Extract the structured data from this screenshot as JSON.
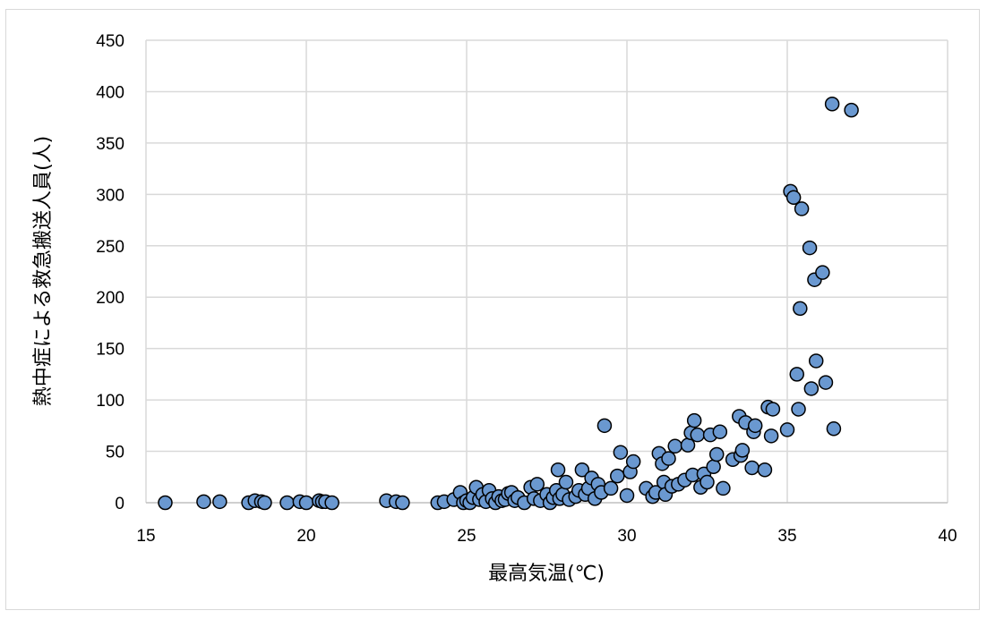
{
  "chart_data": {
    "type": "scatter",
    "title": "",
    "xlabel": "最高気温(℃)",
    "ylabel": "熱中症による救急搬送人員(人)",
    "xlim": [
      15,
      40
    ],
    "ylim": [
      0,
      450
    ],
    "x_ticks": [
      15,
      20,
      25,
      30,
      35,
      40
    ],
    "y_ticks": [
      0,
      50,
      100,
      150,
      200,
      250,
      300,
      350,
      400,
      450
    ],
    "grid": true,
    "legend": "none",
    "marker_color": "#6a98d0",
    "marker_edge_color": "#000000",
    "grid_color": "#d9d9d9",
    "points": [
      [
        15.6,
        0
      ],
      [
        16.8,
        1
      ],
      [
        17.3,
        1
      ],
      [
        18.2,
        0
      ],
      [
        18.4,
        2
      ],
      [
        18.6,
        1
      ],
      [
        18.7,
        0
      ],
      [
        19.4,
        0
      ],
      [
        19.8,
        1
      ],
      [
        20.0,
        0
      ],
      [
        20.4,
        2
      ],
      [
        20.5,
        1
      ],
      [
        20.6,
        1
      ],
      [
        20.8,
        0
      ],
      [
        22.5,
        2
      ],
      [
        22.8,
        1
      ],
      [
        23.0,
        0
      ],
      [
        24.1,
        0
      ],
      [
        24.3,
        1
      ],
      [
        24.6,
        3
      ],
      [
        24.8,
        10
      ],
      [
        24.9,
        0
      ],
      [
        25.0,
        2
      ],
      [
        25.1,
        0
      ],
      [
        25.2,
        5
      ],
      [
        25.3,
        15
      ],
      [
        25.4,
        3
      ],
      [
        25.5,
        8
      ],
      [
        25.6,
        1
      ],
      [
        25.7,
        12
      ],
      [
        25.8,
        4
      ],
      [
        25.9,
        0
      ],
      [
        26.0,
        6
      ],
      [
        26.1,
        2
      ],
      [
        26.2,
        3
      ],
      [
        26.3,
        9
      ],
      [
        26.4,
        10
      ],
      [
        26.5,
        2
      ],
      [
        26.6,
        5
      ],
      [
        26.8,
        0
      ],
      [
        27.0,
        15
      ],
      [
        27.1,
        4
      ],
      [
        27.2,
        18
      ],
      [
        27.3,
        2
      ],
      [
        27.5,
        8
      ],
      [
        27.6,
        0
      ],
      [
        27.7,
        5
      ],
      [
        27.8,
        12
      ],
      [
        27.85,
        32
      ],
      [
        27.9,
        4
      ],
      [
        28.0,
        8
      ],
      [
        28.1,
        20
      ],
      [
        28.2,
        3
      ],
      [
        28.4,
        6
      ],
      [
        28.5,
        12
      ],
      [
        28.6,
        32
      ],
      [
        28.7,
        8
      ],
      [
        28.8,
        14
      ],
      [
        28.9,
        24
      ],
      [
        29.0,
        4
      ],
      [
        29.1,
        18
      ],
      [
        29.2,
        10
      ],
      [
        29.3,
        75
      ],
      [
        29.5,
        14
      ],
      [
        29.7,
        26
      ],
      [
        29.8,
        49
      ],
      [
        30.0,
        7
      ],
      [
        30.1,
        30
      ],
      [
        30.2,
        40
      ],
      [
        30.6,
        14
      ],
      [
        30.8,
        6
      ],
      [
        30.9,
        10
      ],
      [
        31.0,
        48
      ],
      [
        31.1,
        38
      ],
      [
        31.15,
        20
      ],
      [
        31.2,
        8
      ],
      [
        31.3,
        43
      ],
      [
        31.4,
        16
      ],
      [
        31.5,
        55
      ],
      [
        31.6,
        18
      ],
      [
        31.8,
        22
      ],
      [
        31.9,
        56
      ],
      [
        32.0,
        68
      ],
      [
        32.05,
        27
      ],
      [
        32.1,
        80
      ],
      [
        32.2,
        66
      ],
      [
        32.3,
        15
      ],
      [
        32.4,
        28
      ],
      [
        32.5,
        20
      ],
      [
        32.6,
        66
      ],
      [
        32.7,
        35
      ],
      [
        32.8,
        47
      ],
      [
        32.9,
        69
      ],
      [
        33.0,
        14
      ],
      [
        33.3,
        42
      ],
      [
        33.5,
        84
      ],
      [
        33.55,
        46
      ],
      [
        33.6,
        51
      ],
      [
        33.7,
        78
      ],
      [
        33.9,
        34
      ],
      [
        33.95,
        69
      ],
      [
        34.0,
        75
      ],
      [
        34.3,
        32
      ],
      [
        34.4,
        93
      ],
      [
        34.5,
        65
      ],
      [
        34.55,
        91
      ],
      [
        35.0,
        71
      ],
      [
        35.1,
        303
      ],
      [
        35.2,
        297
      ],
      [
        35.3,
        125
      ],
      [
        35.35,
        91
      ],
      [
        35.4,
        189
      ],
      [
        35.45,
        286
      ],
      [
        35.7,
        248
      ],
      [
        35.75,
        111
      ],
      [
        35.85,
        217
      ],
      [
        35.9,
        138
      ],
      [
        36.1,
        224
      ],
      [
        36.2,
        117
      ],
      [
        36.4,
        388
      ],
      [
        36.45,
        72
      ],
      [
        37.0,
        382
      ]
    ]
  }
}
